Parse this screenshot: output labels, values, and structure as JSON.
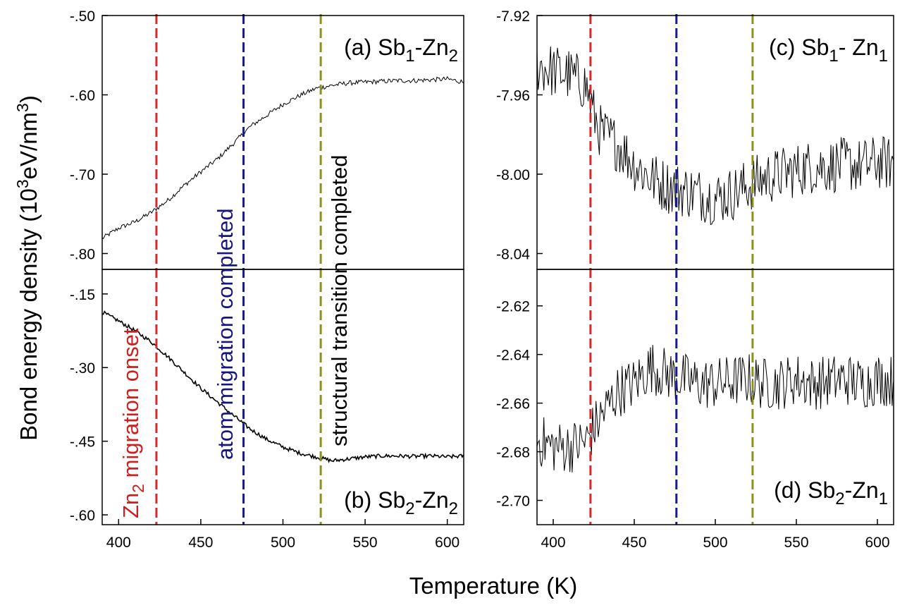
{
  "figure": {
    "xlabel": "Temperature (K)",
    "ylabel_prefix": "Bond energy density (10",
    "ylabel_sup1": "3",
    "ylabel_mid": "eV/nm",
    "ylabel_sup2": "3",
    "ylabel_suffix": ")"
  },
  "annotations": {
    "zn2_onset": {
      "pre": "Zn",
      "sub": "2",
      "post": " migration onset",
      "color": "#cc1f1f"
    },
    "atom_migration": {
      "text": "atom migration completed",
      "color": "#15157d"
    },
    "structural": {
      "text": "structural transition completed",
      "color": "#000000"
    }
  },
  "vlines": [
    {
      "x": 423,
      "color": "#d42a2a"
    },
    {
      "x": 476,
      "color": "#1a1a8f"
    },
    {
      "x": 523,
      "color": "#8f8f1e"
    }
  ],
  "chart_data": [
    {
      "type": "line",
      "id": "a",
      "title": "(a) Sb1-Zn2",
      "label_parts": [
        "(a) Sb",
        "1",
        "-Zn",
        "2"
      ],
      "xlim": [
        390,
        610
      ],
      "ylim": [
        -0.82,
        -0.5
      ],
      "yticks": [
        -0.8,
        -0.7,
        -0.6,
        -0.5
      ],
      "ytick_labels": [
        "-.80",
        "-.70",
        "-.60",
        "-.50"
      ],
      "xticks": [],
      "xtick_labels": [],
      "series": [
        {
          "name": "Sb1-Zn2",
          "x": [
            390,
            400,
            410,
            420,
            430,
            440,
            450,
            460,
            470,
            480,
            490,
            500,
            510,
            520,
            530,
            540,
            550,
            560,
            570,
            580,
            590,
            600,
            610
          ],
          "y": [
            -0.781,
            -0.768,
            -0.76,
            -0.748,
            -0.733,
            -0.714,
            -0.697,
            -0.681,
            -0.661,
            -0.64,
            -0.626,
            -0.612,
            -0.601,
            -0.592,
            -0.588,
            -0.585,
            -0.584,
            -0.583,
            -0.582,
            -0.582,
            -0.581,
            -0.58,
            -0.584
          ],
          "noise": 0.003
        }
      ]
    },
    {
      "type": "line",
      "id": "b",
      "title": "(b) Sb2-Zn2",
      "label_parts": [
        "(b) Sb",
        "2",
        "-Zn",
        "2"
      ],
      "xlim": [
        390,
        610
      ],
      "ylim": [
        -0.62,
        -0.1
      ],
      "yticks": [
        -0.6,
        -0.45,
        -0.3,
        -0.15
      ],
      "ytick_labels": [
        "-.60",
        "-.45",
        "-.30",
        "-.15"
      ],
      "xticks": [
        400,
        450,
        500,
        550,
        600
      ],
      "xtick_labels": [
        "400",
        "450",
        "500",
        "550",
        "600"
      ],
      "series": [
        {
          "name": "Sb2-Zn2",
          "x": [
            390,
            400,
            410,
            420,
            430,
            440,
            450,
            460,
            470,
            480,
            490,
            500,
            510,
            520,
            530,
            540,
            550,
            560,
            570,
            580,
            590,
            600,
            610
          ],
          "y": [
            -0.187,
            -0.205,
            -0.225,
            -0.248,
            -0.278,
            -0.31,
            -0.342,
            -0.37,
            -0.398,
            -0.425,
            -0.446,
            -0.462,
            -0.474,
            -0.482,
            -0.49,
            -0.486,
            -0.482,
            -0.48,
            -0.48,
            -0.481,
            -0.48,
            -0.482,
            -0.48
          ],
          "noise": 0.004
        }
      ]
    },
    {
      "type": "line",
      "id": "c",
      "title": "(c) Sb1- Zn1",
      "label_parts": [
        "(c) Sb",
        "1",
        "- Zn",
        "1"
      ],
      "xlim": [
        390,
        610
      ],
      "ylim": [
        -8.048,
        -7.92
      ],
      "yticks": [
        -8.04,
        -8.0,
        -7.96,
        -7.92
      ],
      "ytick_labels": [
        "-8.04",
        "-8.00",
        "-7.96",
        "-7.92"
      ],
      "xticks": [],
      "xtick_labels": [],
      "series": [
        {
          "name": "Sb1-Zn1",
          "x": [
            390,
            400,
            410,
            420,
            425,
            430,
            440,
            450,
            460,
            470,
            480,
            490,
            500,
            510,
            520,
            530,
            540,
            550,
            560,
            570,
            580,
            590,
            600,
            610
          ],
          "y": [
            -7.945,
            -7.948,
            -7.95,
            -7.955,
            -7.97,
            -7.98,
            -7.985,
            -7.995,
            -8.002,
            -8.006,
            -8.008,
            -8.01,
            -8.012,
            -8.01,
            -8.006,
            -8.002,
            -8.0,
            -7.998,
            -7.996,
            -7.996,
            -7.995,
            -7.996,
            -7.994,
            -7.995
          ],
          "noise": 0.014
        }
      ]
    },
    {
      "type": "line",
      "id": "d",
      "title": "(d) Sb2-Zn1",
      "label_parts": [
        "(d) Sb",
        "2",
        "-Zn",
        "1"
      ],
      "xlim": [
        390,
        610
      ],
      "ylim": [
        -2.71,
        -2.605
      ],
      "yticks": [
        -2.7,
        -2.68,
        -2.66,
        -2.64,
        -2.62
      ],
      "ytick_labels": [
        "-2.70",
        "-2.68",
        "-2.66",
        "-2.64",
        "-2.62"
      ],
      "xticks": [
        400,
        450,
        500,
        550,
        600
      ],
      "xtick_labels": [
        "400",
        "450",
        "500",
        "550",
        "600"
      ],
      "series": [
        {
          "name": "Sb2-Zn1",
          "x": [
            390,
            400,
            410,
            420,
            430,
            440,
            450,
            460,
            470,
            480,
            490,
            500,
            510,
            520,
            530,
            540,
            550,
            560,
            570,
            580,
            590,
            600,
            610
          ],
          "y": [
            -2.675,
            -2.678,
            -2.678,
            -2.676,
            -2.665,
            -2.655,
            -2.652,
            -2.645,
            -2.648,
            -2.65,
            -2.652,
            -2.652,
            -2.651,
            -2.65,
            -2.652,
            -2.652,
            -2.65,
            -2.652,
            -2.651,
            -2.65,
            -2.652,
            -2.65,
            -2.651
          ],
          "noise": 0.011
        }
      ]
    }
  ]
}
